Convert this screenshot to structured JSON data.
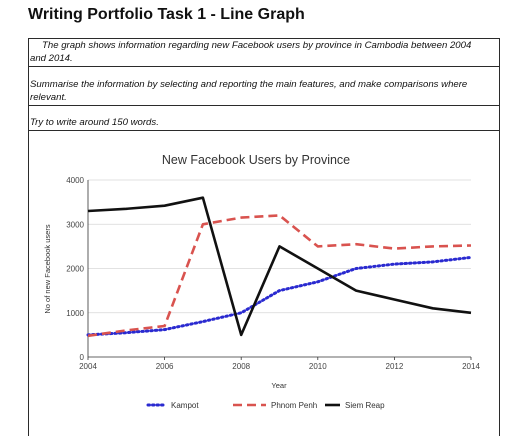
{
  "page": {
    "heading": "Writing Portfolio Task 1 - Line Graph"
  },
  "task": {
    "intro": "The graph shows information regarding new Facebook users by province in Cambodia between 2004 and 2014.",
    "summary": "Summarise the information by selecting and reporting the main features, and make comparisons where relevant.",
    "words": "Try to write around 150 words."
  },
  "colors": {
    "kampot": "#2a2ad0",
    "phnom_penh": "#d9534f",
    "siem_reap": "#111111",
    "grid": "#d8d8d8",
    "axis": "#333333"
  },
  "chart_data": {
    "type": "line",
    "title": "New Facebook Users by Province",
    "xlabel": "Year",
    "ylabel": "No of new Facebook users",
    "x": [
      2004,
      2005,
      2006,
      2007,
      2008,
      2009,
      2010,
      2011,
      2012,
      2013,
      2014
    ],
    "xlim": [
      2004,
      2014
    ],
    "ylim": [
      0,
      4000
    ],
    "xticks": [
      "2004",
      "2006",
      "2008",
      "2010",
      "2012",
      "2014"
    ],
    "yticks": [
      "0",
      "1000",
      "2000",
      "3000",
      "4000"
    ],
    "grid": "horizontal",
    "legend_position": "bottom",
    "series": [
      {
        "name": "Kampot",
        "style": "dotted",
        "x": [
          2004,
          2005,
          2006,
          2007,
          2008,
          2009,
          2010,
          2011,
          2012,
          2013,
          2014
        ],
        "values": [
          500,
          550,
          620,
          800,
          1000,
          1500,
          1700,
          2000,
          2100,
          2150,
          2250
        ]
      },
      {
        "name": "Phnom Penh",
        "style": "dashed",
        "x": [
          2004,
          2005,
          2006,
          2007,
          2008,
          2009,
          2010,
          2011,
          2012,
          2013,
          2014
        ],
        "values": [
          480,
          600,
          700,
          3000,
          3150,
          3200,
          2500,
          2550,
          2450,
          2500,
          2520
        ]
      },
      {
        "name": "Siem Reap",
        "style": "solid",
        "x": [
          2004,
          2005,
          2006,
          2007,
          2008,
          2009,
          2010,
          2011,
          2012,
          2013,
          2014
        ],
        "values": [
          3300,
          3350,
          3420,
          3600,
          500,
          2500,
          2000,
          1500,
          1300,
          1100,
          1000
        ]
      }
    ]
  }
}
